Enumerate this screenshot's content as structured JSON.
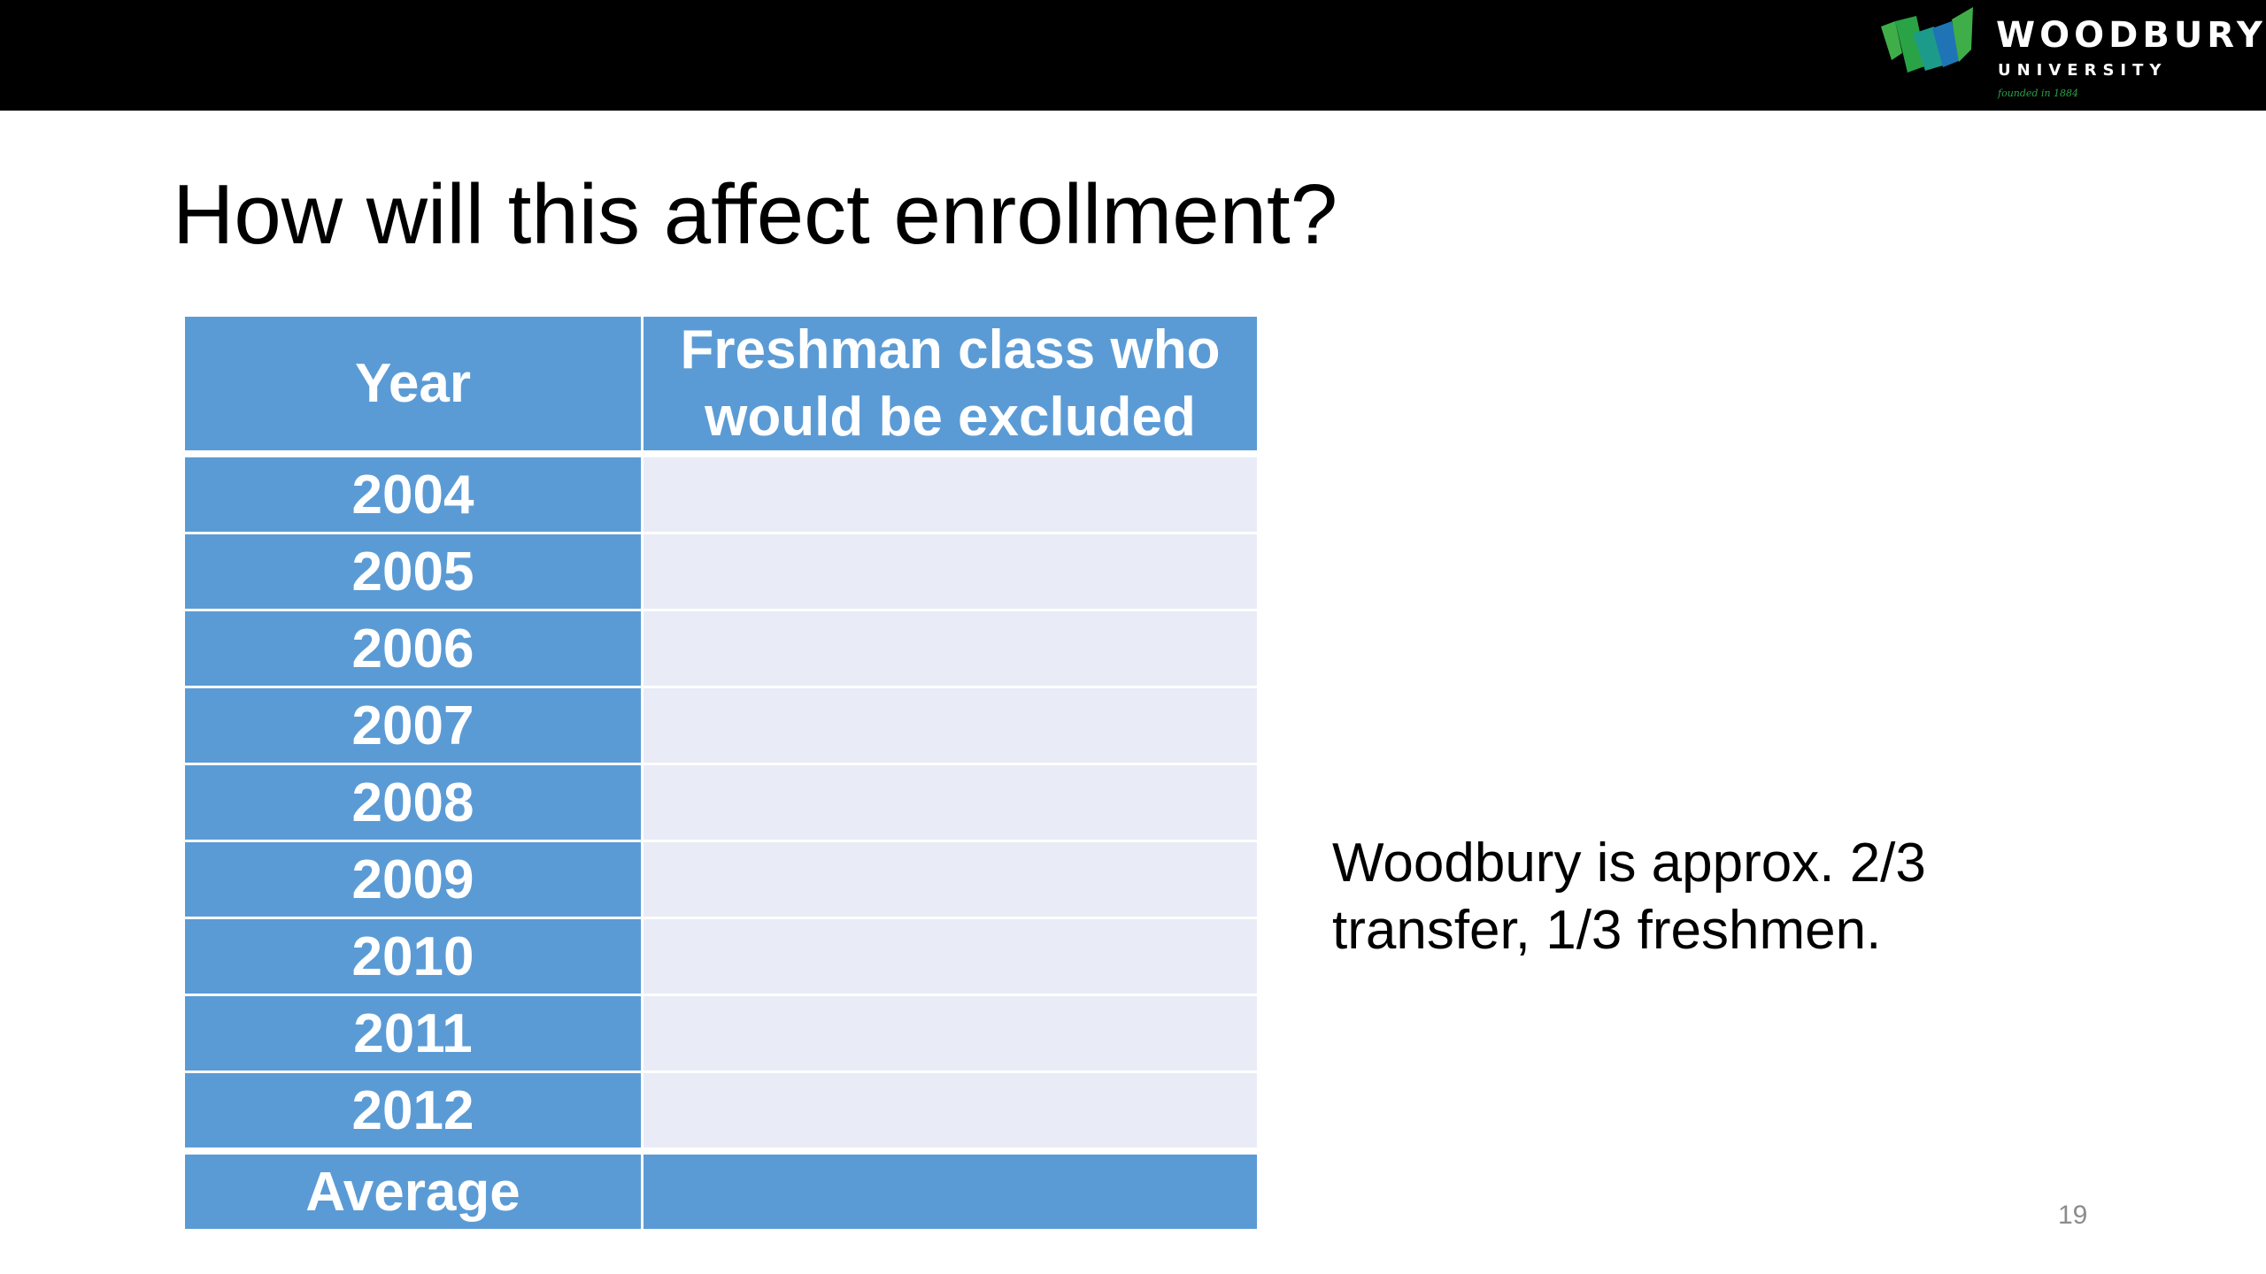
{
  "header": {
    "logo": {
      "name": "WOODBURY",
      "subtitle": "UNIVERSITY",
      "tagline": "founded in 1884",
      "icon": "woodbury-w-logo-icon",
      "colors": {
        "green": "#3fae49",
        "teal": "#1d9b8a",
        "blue": "#1f74b6"
      }
    }
  },
  "slide": {
    "title": "How will this affect enrollment?",
    "page_number": "19"
  },
  "table": {
    "headers": {
      "year": "Year",
      "excluded": "Freshman class who would be excluded"
    },
    "rows": [
      {
        "year": "2004",
        "excluded": ""
      },
      {
        "year": "2005",
        "excluded": ""
      },
      {
        "year": "2006",
        "excluded": ""
      },
      {
        "year": "2007",
        "excluded": ""
      },
      {
        "year": "2008",
        "excluded": ""
      },
      {
        "year": "2009",
        "excluded": ""
      },
      {
        "year": "2010",
        "excluded": ""
      },
      {
        "year": "2011",
        "excluded": ""
      },
      {
        "year": "2012",
        "excluded": ""
      }
    ],
    "average": {
      "label": "Average",
      "value": ""
    },
    "colors": {
      "header_fill": "#5b9bd5",
      "row_fill": "#e9ecf6"
    }
  },
  "note": "Woodbury is approx. 2/3 transfer, 1/3 freshmen."
}
